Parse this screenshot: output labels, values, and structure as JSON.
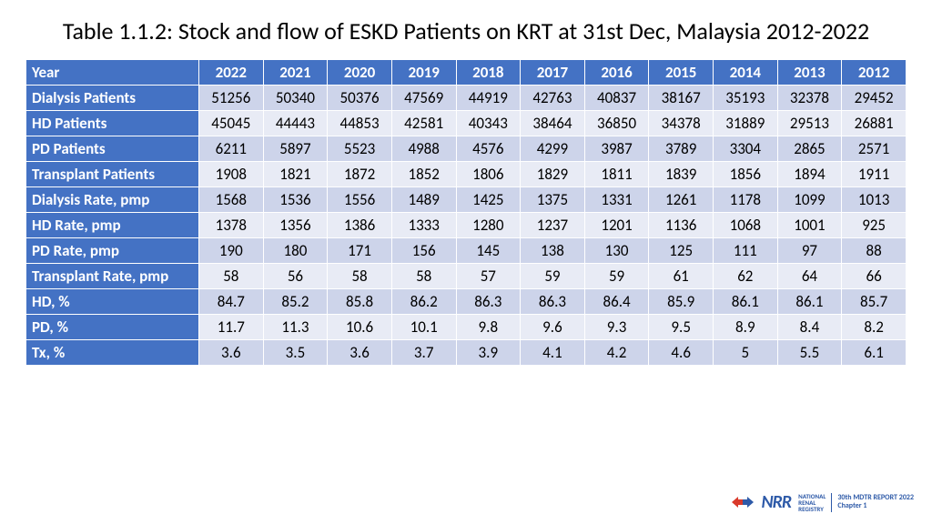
{
  "title": "Table 1.1.2: Stock and flow of ESKD Patients on KRT at 31st Dec, Malaysia 2012-2022",
  "table": {
    "header_label": "Year",
    "columns": [
      "2022",
      "2021",
      "2020",
      "2019",
      "2018",
      "2017",
      "2016",
      "2015",
      "2014",
      "2013",
      "2012"
    ],
    "rows": [
      {
        "label": "Dialysis Patients",
        "vals": [
          "51256",
          "50340",
          "50376",
          "47569",
          "44919",
          "42763",
          "40837",
          "38167",
          "35193",
          "32378",
          "29452"
        ]
      },
      {
        "label": "HD Patients",
        "vals": [
          "45045",
          "44443",
          "44853",
          "42581",
          "40343",
          "38464",
          "36850",
          "34378",
          "31889",
          "29513",
          "26881"
        ]
      },
      {
        "label": "PD Patients",
        "vals": [
          "6211",
          "5897",
          "5523",
          "4988",
          "4576",
          "4299",
          "3987",
          "3789",
          "3304",
          "2865",
          "2571"
        ]
      },
      {
        "label": "Transplant Patients",
        "vals": [
          "1908",
          "1821",
          "1872",
          "1852",
          "1806",
          "1829",
          "1811",
          "1839",
          "1856",
          "1894",
          "1911"
        ]
      },
      {
        "label": "Dialysis Rate, pmp",
        "vals": [
          "1568",
          "1536",
          "1556",
          "1489",
          "1425",
          "1375",
          "1331",
          "1261",
          "1178",
          "1099",
          "1013"
        ]
      },
      {
        "label": "HD Rate, pmp",
        "vals": [
          "1378",
          "1356",
          "1386",
          "1333",
          "1280",
          "1237",
          "1201",
          "1136",
          "1068",
          "1001",
          "925"
        ]
      },
      {
        "label": "PD Rate, pmp",
        "vals": [
          "190",
          "180",
          "171",
          "156",
          "145",
          "138",
          "130",
          "125",
          "111",
          "97",
          "88"
        ]
      },
      {
        "label": "Transplant Rate, pmp",
        "vals": [
          "58",
          "56",
          "58",
          "58",
          "57",
          "59",
          "59",
          "61",
          "62",
          "64",
          "66"
        ]
      },
      {
        "label": "HD, %",
        "vals": [
          "84.7",
          "85.2",
          "85.8",
          "86.2",
          "86.3",
          "86.3",
          "86.4",
          "85.9",
          "86.1",
          "86.1",
          "85.7"
        ]
      },
      {
        "label": "PD, %",
        "vals": [
          "11.7",
          "11.3",
          "10.6",
          "10.1",
          "9.8",
          "9.6",
          "9.3",
          "9.5",
          "8.9",
          "8.4",
          "8.2"
        ]
      },
      {
        "label": "Tx, %",
        "vals": [
          "3.6",
          "3.5",
          "3.6",
          "3.7",
          "3.9",
          "4.1",
          "4.2",
          "4.6",
          "5",
          "5.5",
          "6.1"
        ]
      }
    ],
    "header_bg": "#4472c4",
    "header_fg": "#ffffff",
    "band_a_bg": "#cdd4ea",
    "band_b_bg": "#e8ebf5",
    "border_color": "#ffffff"
  },
  "footer": {
    "logo_text": "NRR",
    "stack": [
      "NATIONAL",
      "RENAL",
      "REGISTRY"
    ],
    "report_line1": "30th MDTR REPORT 2022",
    "report_line2": "Chapter 1",
    "arrow_red": "#d93a2b",
    "arrow_blue": "#2e5aa8"
  }
}
